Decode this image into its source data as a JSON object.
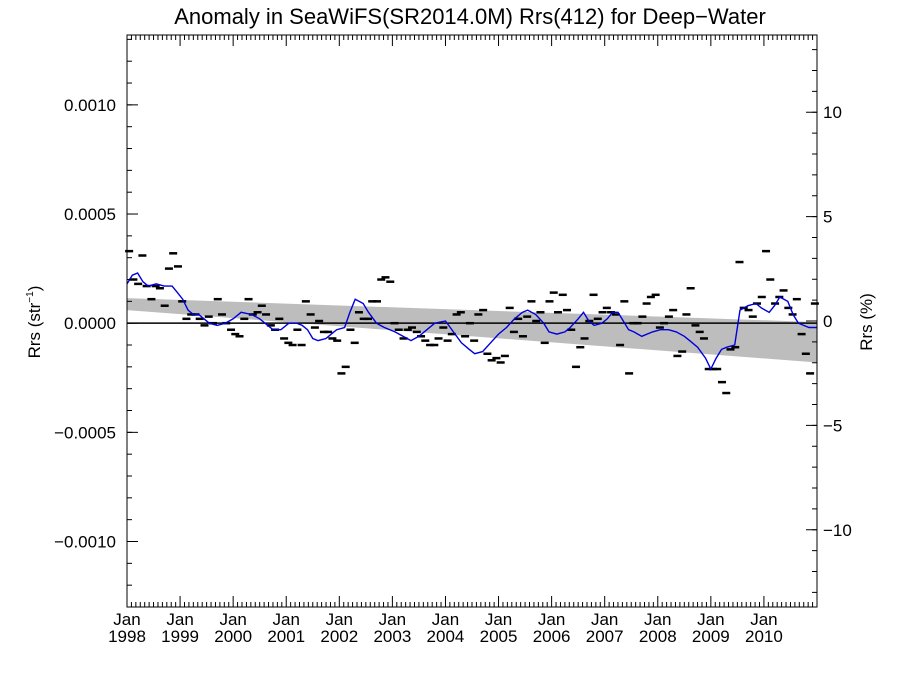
{
  "chart_data": {
    "type": "scatter",
    "title": "Anomaly in SeaWiFS(SR2014.0M) Rrs(412) for Deep−Water",
    "ylabel_left": {
      "text": "Rrs (str",
      "sup": "−1",
      "close": ")"
    },
    "ylabel_right": "Rrs (%)",
    "xlim": [
      1998.0,
      2011.0
    ],
    "ylim": [
      -0.0013,
      0.00132
    ],
    "ylim_right": [
      -13.7,
      13.7
    ],
    "left_ticks": [
      {
        "value": 0.001,
        "label": "0.0010"
      },
      {
        "value": 0.0005,
        "label": "0.0005"
      },
      {
        "value": 0.0,
        "label": "0.0000"
      },
      {
        "value": -0.0005,
        "label": "−0.0005"
      },
      {
        "value": -0.001,
        "label": "−0.0010"
      }
    ],
    "right_ticks": [
      {
        "value": 10,
        "label": "10"
      },
      {
        "value": 5,
        "label": "5"
      },
      {
        "value": 0,
        "label": "0"
      },
      {
        "value": -5,
        "label": "−5"
      },
      {
        "value": -10,
        "label": "−10"
      }
    ],
    "x_ticks": [
      {
        "value": 1998,
        "month": "Jan",
        "year": "1998"
      },
      {
        "value": 1999,
        "month": "Jan",
        "year": "1999"
      },
      {
        "value": 2000,
        "month": "Jan",
        "year": "2000"
      },
      {
        "value": 2001,
        "month": "Jan",
        "year": "2001"
      },
      {
        "value": 2002,
        "month": "Jan",
        "year": "2002"
      },
      {
        "value": 2003,
        "month": "Jan",
        "year": "2003"
      },
      {
        "value": 2004,
        "month": "Jan",
        "year": "2004"
      },
      {
        "value": 2005,
        "month": "Jan",
        "year": "2005"
      },
      {
        "value": 2006,
        "month": "Jan",
        "year": "2006"
      },
      {
        "value": 2007,
        "month": "Jan",
        "year": "2007"
      },
      {
        "value": 2008,
        "month": "Jan",
        "year": "2008"
      },
      {
        "value": 2009,
        "month": "Jan",
        "year": "2009"
      },
      {
        "value": 2010,
        "month": "Jan",
        "year": "2010"
      }
    ],
    "trend_band": {
      "x": [
        1998.0,
        2011.0
      ],
      "upper": [
        0.000115,
        5e-06
      ],
      "lower": [
        6e-05,
        -0.00018
      ]
    },
    "zero_line": 0,
    "colors": {
      "points": "#000000",
      "smooth": "#0000dd",
      "band": "#bdbdbd",
      "zero": "#000000"
    },
    "points": [
      [
        1998.04,
        0.00033
      ],
      [
        1998.12,
        0.0002
      ],
      [
        1998.21,
        0.00018
      ],
      [
        1998.29,
        0.00031
      ],
      [
        1998.37,
        0.00017
      ],
      [
        1998.46,
        0.00011
      ],
      [
        1998.54,
        0.00017
      ],
      [
        1998.62,
        0.00016
      ],
      [
        1998.71,
        8e-05
      ],
      [
        1998.79,
        0.00025
      ],
      [
        1998.87,
        0.00032
      ],
      [
        1998.96,
        0.00026
      ],
      [
        1999.04,
        0.0001
      ],
      [
        1999.12,
        2e-05
      ],
      [
        1999.21,
        4e-05
      ],
      [
        1999.29,
        4e-05
      ],
      [
        1999.37,
        2e-05
      ],
      [
        1999.46,
        -1e-05
      ],
      [
        1999.54,
        3e-05
      ],
      [
        1999.62,
        0.0
      ],
      [
        1999.71,
        0.00011
      ],
      [
        1999.79,
        4e-05
      ],
      [
        1999.87,
        0.0
      ],
      [
        1999.96,
        -3e-05
      ],
      [
        2000.04,
        -5e-05
      ],
      [
        2000.12,
        -6e-05
      ],
      [
        2000.21,
        2e-05
      ],
      [
        2000.29,
        0.00011
      ],
      [
        2000.37,
        4e-05
      ],
      [
        2000.46,
        5e-05
      ],
      [
        2000.54,
        8e-05
      ],
      [
        2000.62,
        4e-05
      ],
      [
        2000.71,
        -1e-05
      ],
      [
        2000.79,
        -3e-05
      ],
      [
        2000.87,
        2e-05
      ],
      [
        2000.96,
        -7e-05
      ],
      [
        2001.04,
        -9e-05
      ],
      [
        2001.12,
        -0.0001
      ],
      [
        2001.21,
        -3e-05
      ],
      [
        2001.29,
        -0.0001
      ],
      [
        2001.37,
        0.0001
      ],
      [
        2001.46,
        4e-05
      ],
      [
        2001.54,
        -2e-05
      ],
      [
        2001.62,
        1e-05
      ],
      [
        2001.71,
        -4e-05
      ],
      [
        2001.79,
        -4e-05
      ],
      [
        2001.87,
        -7e-05
      ],
      [
        2001.96,
        -8e-05
      ],
      [
        2002.04,
        -0.00023
      ],
      [
        2002.12,
        -0.0002
      ],
      [
        2002.21,
        -3e-05
      ],
      [
        2002.29,
        -9e-05
      ],
      [
        2002.37,
        5e-05
      ],
      [
        2002.46,
        2e-05
      ],
      [
        2002.54,
        2e-05
      ],
      [
        2002.62,
        0.0001
      ],
      [
        2002.71,
        0.0001
      ],
      [
        2002.79,
        0.0002
      ],
      [
        2002.87,
        0.00021
      ],
      [
        2002.96,
        0.00019
      ],
      [
        2003.04,
        0.0
      ],
      [
        2003.12,
        -3e-05
      ],
      [
        2003.21,
        -7e-05
      ],
      [
        2003.29,
        -3e-05
      ],
      [
        2003.37,
        -2e-05
      ],
      [
        2003.46,
        -4e-05
      ],
      [
        2003.54,
        -6e-05
      ],
      [
        2003.62,
        -8e-05
      ],
      [
        2003.71,
        -0.0001
      ],
      [
        2003.79,
        -0.0001
      ],
      [
        2003.87,
        -7e-05
      ],
      [
        2003.96,
        -2e-05
      ],
      [
        2004.04,
        -8e-05
      ],
      [
        2004.12,
        -5e-05
      ],
      [
        2004.21,
        4e-05
      ],
      [
        2004.29,
        5e-05
      ],
      [
        2004.37,
        -6e-05
      ],
      [
        2004.46,
        0.0
      ],
      [
        2004.54,
        -8e-05
      ],
      [
        2004.62,
        4e-05
      ],
      [
        2004.71,
        6e-05
      ],
      [
        2004.79,
        -0.00014
      ],
      [
        2004.87,
        -0.00017
      ],
      [
        2004.96,
        -0.00016
      ],
      [
        2005.04,
        -0.00018
      ],
      [
        2005.12,
        -0.00015
      ],
      [
        2005.21,
        7e-05
      ],
      [
        2005.29,
        -4e-05
      ],
      [
        2005.37,
        2e-05
      ],
      [
        2005.46,
        -6e-05
      ],
      [
        2005.54,
        3e-05
      ],
      [
        2005.62,
        0.0001
      ],
      [
        2005.71,
        1e-05
      ],
      [
        2005.79,
        5e-05
      ],
      [
        2005.87,
        -9e-05
      ],
      [
        2005.96,
        0.0001
      ],
      [
        2006.04,
        0.00014
      ],
      [
        2006.12,
        5e-05
      ],
      [
        2006.21,
        0.00013
      ],
      [
        2006.29,
        6e-05
      ],
      [
        2006.37,
        -3e-05
      ],
      [
        2006.46,
        -0.0002
      ],
      [
        2006.54,
        -0.00011
      ],
      [
        2006.62,
        -7e-05
      ],
      [
        2006.71,
        1e-05
      ],
      [
        2006.79,
        0.00013
      ],
      [
        2006.87,
        2e-05
      ],
      [
        2006.96,
        5e-05
      ],
      [
        2007.04,
        7e-05
      ],
      [
        2007.12,
        5e-05
      ],
      [
        2007.21,
        4e-05
      ],
      [
        2007.29,
        -0.0001
      ],
      [
        2007.37,
        0.0001
      ],
      [
        2007.46,
        -0.00023
      ],
      [
        2007.54,
        0.0
      ],
      [
        2007.62,
        0.0
      ],
      [
        2007.71,
        3e-05
      ],
      [
        2007.79,
        9e-05
      ],
      [
        2007.87,
        0.00012
      ],
      [
        2007.96,
        0.00013
      ],
      [
        2008.04,
        -2e-05
      ],
      [
        2008.12,
        0.0
      ],
      [
        2008.21,
        3e-05
      ],
      [
        2008.29,
        6e-05
      ],
      [
        2008.37,
        -0.00015
      ],
      [
        2008.46,
        -0.00013
      ],
      [
        2008.54,
        4e-05
      ],
      [
        2008.62,
        0.00016
      ],
      [
        2008.71,
        -1e-05
      ],
      [
        2008.79,
        -4e-05
      ],
      [
        2008.87,
        -7e-05
      ],
      [
        2008.96,
        -0.00021
      ],
      [
        2009.04,
        -0.00021
      ],
      [
        2009.12,
        -0.00021
      ],
      [
        2009.21,
        -0.00027
      ],
      [
        2009.29,
        -0.00032
      ],
      [
        2009.37,
        -0.00012
      ],
      [
        2009.46,
        -0.00011
      ],
      [
        2009.54,
        0.00028
      ],
      [
        2009.62,
        7e-05
      ],
      [
        2009.71,
        6e-05
      ],
      [
        2009.79,
        3e-05
      ],
      [
        2009.87,
        9e-05
      ],
      [
        2009.96,
        0.00012
      ],
      [
        2010.04,
        0.00033
      ],
      [
        2010.12,
        0.0002
      ],
      [
        2010.21,
        9e-05
      ],
      [
        2010.29,
        0.00012
      ],
      [
        2010.37,
        0.00015
      ],
      [
        2010.46,
        7e-05
      ],
      [
        2010.54,
        4e-05
      ],
      [
        2010.62,
        0.00011
      ],
      [
        2010.71,
        -5e-05
      ],
      [
        2010.79,
        -0.00014
      ],
      [
        2010.87,
        -0.00023
      ],
      [
        2010.96,
        9e-05
      ]
    ],
    "smooth": [
      [
        1998.0,
        0.00018
      ],
      [
        1998.1,
        0.00022
      ],
      [
        1998.2,
        0.00023
      ],
      [
        1998.3,
        0.00019
      ],
      [
        1998.4,
        0.00017
      ],
      [
        1998.55,
        0.00018
      ],
      [
        1998.7,
        0.00017
      ],
      [
        1998.85,
        0.00017
      ],
      [
        1998.95,
        0.00014
      ],
      [
        1999.05,
        0.00011
      ],
      [
        1999.15,
        6e-05
      ],
      [
        1999.25,
        4e-05
      ],
      [
        1999.35,
        4e-05
      ],
      [
        1999.45,
        2e-05
      ],
      [
        1999.55,
        0.0
      ],
      [
        1999.7,
        -1e-05
      ],
      [
        1999.85,
        0.0
      ],
      [
        2000.0,
        2e-05
      ],
      [
        2000.15,
        5e-05
      ],
      [
        2000.35,
        4e-05
      ],
      [
        2000.5,
        2e-05
      ],
      [
        2000.6,
        0.0
      ],
      [
        2000.75,
        -3e-05
      ],
      [
        2000.9,
        -3e-05
      ],
      [
        2001.05,
        0.0
      ],
      [
        2001.2,
        0.0
      ],
      [
        2001.3,
        -1e-05
      ],
      [
        2001.4,
        -3e-05
      ],
      [
        2001.5,
        -7e-05
      ],
      [
        2001.6,
        -8e-05
      ],
      [
        2001.75,
        -7e-05
      ],
      [
        2001.85,
        -5e-05
      ],
      [
        2001.95,
        -3e-05
      ],
      [
        2002.1,
        -2e-05
      ],
      [
        2002.2,
        5e-05
      ],
      [
        2002.3,
        0.00011
      ],
      [
        2002.45,
        9e-05
      ],
      [
        2002.55,
        5e-05
      ],
      [
        2002.7,
        0.0
      ],
      [
        2002.85,
        -2e-05
      ],
      [
        2003.05,
        -4e-05
      ],
      [
        2003.2,
        -6e-05
      ],
      [
        2003.35,
        -8e-05
      ],
      [
        2003.5,
        -6e-05
      ],
      [
        2003.65,
        -3e-05
      ],
      [
        2003.8,
        0.0
      ],
      [
        2004.0,
        1e-05
      ],
      [
        2004.15,
        -4e-05
      ],
      [
        2004.3,
        -9e-05
      ],
      [
        2004.45,
        -0.00012
      ],
      [
        2004.55,
        -0.00014
      ],
      [
        2004.7,
        -0.00013
      ],
      [
        2004.85,
        -9e-05
      ],
      [
        2005.0,
        -5e-05
      ],
      [
        2005.15,
        -2e-05
      ],
      [
        2005.3,
        2e-05
      ],
      [
        2005.45,
        5e-05
      ],
      [
        2005.55,
        6e-05
      ],
      [
        2005.7,
        4e-05
      ],
      [
        2005.85,
        0.0
      ],
      [
        2005.95,
        -4e-05
      ],
      [
        2006.1,
        -5e-05
      ],
      [
        2006.25,
        -4e-05
      ],
      [
        2006.35,
        -2e-05
      ],
      [
        2006.5,
        2e-05
      ],
      [
        2006.6,
        5e-05
      ],
      [
        2006.7,
        1e-05
      ],
      [
        2006.8,
        -1e-05
      ],
      [
        2006.95,
        0.0
      ],
      [
        2007.05,
        2e-05
      ],
      [
        2007.15,
        5e-05
      ],
      [
        2007.25,
        5e-05
      ],
      [
        2007.35,
        1e-05
      ],
      [
        2007.45,
        -3e-05
      ],
      [
        2007.55,
        -4e-05
      ],
      [
        2007.7,
        -6e-05
      ],
      [
        2007.9,
        -4e-05
      ],
      [
        2008.05,
        -3e-05
      ],
      [
        2008.2,
        -3e-05
      ],
      [
        2008.35,
        -4e-05
      ],
      [
        2008.5,
        -6e-05
      ],
      [
        2008.6,
        -8e-05
      ],
      [
        2008.75,
        -0.00011
      ],
      [
        2008.9,
        -0.00016
      ],
      [
        2009.0,
        -0.00021
      ],
      [
        2009.1,
        -0.00016
      ],
      [
        2009.2,
        -0.00012
      ],
      [
        2009.3,
        -0.00011
      ],
      [
        2009.45,
        -0.0001
      ],
      [
        2009.55,
        6e-05
      ],
      [
        2009.7,
        8e-05
      ],
      [
        2009.85,
        9e-05
      ],
      [
        2009.95,
        7e-05
      ],
      [
        2010.1,
        5e-05
      ],
      [
        2010.2,
        8e-05
      ],
      [
        2010.3,
        0.00012
      ],
      [
        2010.45,
        0.0001
      ],
      [
        2010.55,
        4e-05
      ],
      [
        2010.65,
        0.0
      ],
      [
        2010.75,
        -1e-05
      ],
      [
        2010.85,
        -2e-05
      ],
      [
        2010.95,
        -2e-05
      ],
      [
        2011.0,
        -2e-05
      ]
    ]
  }
}
